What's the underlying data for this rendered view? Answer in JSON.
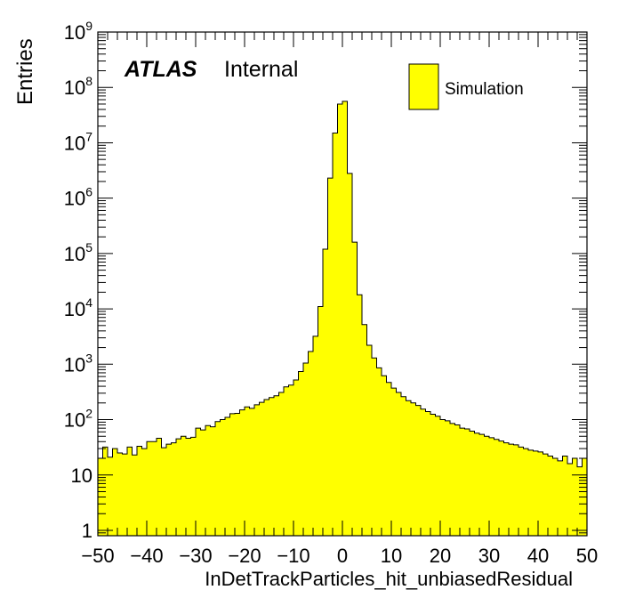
{
  "chart_data": {
    "type": "bar",
    "style": "histogram-step",
    "yscale": "log",
    "xlabel": "InDetTrackParticles_hit_unbiasedResidual",
    "ylabel": "Entries",
    "xlim": [
      -50,
      50
    ],
    "ylim": [
      0.8,
      1000000000
    ],
    "bin_width": 1,
    "x_ticks": [
      -50,
      -40,
      -30,
      -20,
      -10,
      0,
      10,
      20,
      30,
      40,
      50
    ],
    "x_tick_labels": [
      "−50",
      "−40",
      "−30",
      "−20",
      "−10",
      "0",
      "10",
      "20",
      "30",
      "40",
      "50"
    ],
    "y_ticks": [
      {
        "value": 1,
        "mantissa": "1",
        "exponent": ""
      },
      {
        "value": 10,
        "mantissa": "10",
        "exponent": ""
      },
      {
        "value": 100,
        "mantissa": "10",
        "exponent": "2"
      },
      {
        "value": 1000,
        "mantissa": "10",
        "exponent": "3"
      },
      {
        "value": 10000,
        "mantissa": "10",
        "exponent": "4"
      },
      {
        "value": 100000,
        "mantissa": "10",
        "exponent": "5"
      },
      {
        "value": 1000000,
        "mantissa": "10",
        "exponent": "6"
      },
      {
        "value": 10000000,
        "mantissa": "10",
        "exponent": "7"
      },
      {
        "value": 100000000,
        "mantissa": "10",
        "exponent": "8"
      },
      {
        "value": 1000000000,
        "mantissa": "10",
        "exponent": "9"
      }
    ],
    "fill_color": "#ffff00",
    "line_color": "#000000",
    "legend": {
      "position": "top-right",
      "entries": [
        "Simulation"
      ]
    },
    "label": {
      "bold": "ATLAS",
      "text": "Internal"
    },
    "series": [
      {
        "name": "Simulation",
        "x": [
          -49.5,
          -48.5,
          -47.5,
          -46.5,
          -45.5,
          -44.5,
          -43.5,
          -42.5,
          -41.5,
          -40.5,
          -39.5,
          -38.5,
          -37.5,
          -36.5,
          -35.5,
          -34.5,
          -33.5,
          -32.5,
          -31.5,
          -30.5,
          -29.5,
          -28.5,
          -27.5,
          -26.5,
          -25.5,
          -24.5,
          -23.5,
          -22.5,
          -21.5,
          -20.5,
          -19.5,
          -18.5,
          -17.5,
          -16.5,
          -15.5,
          -14.5,
          -13.5,
          -12.5,
          -11.5,
          -10.5,
          -9.5,
          -8.5,
          -7.5,
          -6.5,
          -5.5,
          -4.5,
          -3.5,
          -2.5,
          -1.5,
          -0.5,
          0.5,
          1.5,
          2.5,
          3.5,
          4.5,
          5.5,
          6.5,
          7.5,
          8.5,
          9.5,
          10.5,
          11.5,
          12.5,
          13.5,
          14.5,
          15.5,
          16.5,
          17.5,
          18.5,
          19.5,
          20.5,
          21.5,
          22.5,
          23.5,
          24.5,
          25.5,
          26.5,
          27.5,
          28.5,
          29.5,
          30.5,
          31.5,
          32.5,
          33.5,
          34.5,
          35.5,
          36.5,
          37.5,
          38.5,
          39.5,
          40.5,
          41.5,
          42.5,
          43.5,
          44.5,
          45.5,
          46.5,
          47.5,
          48.5,
          49.5
        ],
        "values": [
          20,
          32,
          21,
          30,
          25,
          24,
          32,
          23,
          33,
          30,
          40,
          40,
          46,
          31,
          36,
          38,
          45,
          50,
          46,
          48,
          70,
          65,
          78,
          74,
          92,
          100,
          110,
          128,
          130,
          150,
          170,
          160,
          185,
          205,
          230,
          250,
          270,
          310,
          390,
          420,
          520,
          740,
          1050,
          1700,
          3200,
          11000,
          120000,
          2300000,
          15000000,
          50000000,
          56000000,
          2800000,
          160000,
          18000,
          5200,
          2200,
          1300,
          860,
          620,
          470,
          370,
          310,
          260,
          220,
          200,
          180,
          155,
          140,
          125,
          115,
          100,
          95,
          85,
          80,
          70,
          68,
          62,
          57,
          54,
          50,
          47,
          44,
          41,
          38,
          36,
          35,
          32,
          30,
          28,
          27,
          26,
          24,
          22,
          20,
          18,
          22,
          16,
          20,
          14,
          20
        ]
      }
    ]
  }
}
